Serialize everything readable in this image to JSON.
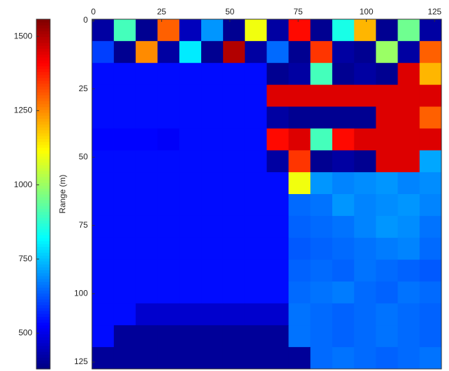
{
  "chart_data": {
    "type": "heatmap",
    "colormap": "jet",
    "colorbar_label": "Range (m)",
    "xlim": [
      -0.5,
      127.5
    ],
    "ylim": [
      127.5,
      -0.5
    ],
    "xticks": [
      0,
      25,
      50,
      75,
      100,
      125
    ],
    "yticks": [
      0,
      25,
      50,
      75,
      100,
      125
    ],
    "clim": [
      380,
      1558
    ],
    "cticks": [
      500,
      750,
      1000,
      1250,
      1500
    ],
    "values": [
      [
        420,
        900,
        400,
        1300,
        450,
        700,
        400,
        1100,
        420,
        1400,
        400,
        850,
        1200,
        400,
        950,
        420
      ],
      [
        600,
        400,
        1250,
        420,
        800,
        400,
        1500,
        420,
        650,
        400,
        1350,
        420,
        400,
        1000,
        420,
        1300
      ],
      [
        540,
        540,
        540,
        540,
        540,
        540,
        540,
        540,
        400,
        420,
        900,
        400,
        420,
        400,
        1450,
        1200
      ],
      [
        540,
        540,
        540,
        540,
        540,
        540,
        540,
        540,
        1450,
        1450,
        1450,
        1450,
        1450,
        1450,
        1450,
        1450
      ],
      [
        540,
        540,
        540,
        540,
        540,
        540,
        540,
        540,
        420,
        400,
        400,
        400,
        400,
        1450,
        1450,
        1300
      ],
      [
        530,
        530,
        530,
        520,
        540,
        540,
        540,
        540,
        1400,
        1450,
        900,
        1400,
        1450,
        1450,
        1450,
        1450
      ],
      [
        540,
        540,
        540,
        540,
        540,
        540,
        540,
        540,
        420,
        1350,
        400,
        420,
        400,
        1450,
        1450,
        720
      ],
      [
        540,
        540,
        540,
        540,
        540,
        540,
        540,
        540,
        540,
        1100,
        700,
        680,
        690,
        700,
        680,
        690
      ],
      [
        540,
        540,
        540,
        540,
        540,
        540,
        540,
        540,
        540,
        650,
        660,
        700,
        680,
        690,
        700,
        680
      ],
      [
        540,
        540,
        540,
        540,
        540,
        540,
        540,
        540,
        540,
        640,
        650,
        660,
        680,
        700,
        690,
        660
      ],
      [
        540,
        540,
        540,
        540,
        540,
        540,
        540,
        540,
        540,
        630,
        640,
        650,
        660,
        670,
        680,
        650
      ],
      [
        540,
        540,
        540,
        540,
        540,
        540,
        540,
        540,
        540,
        640,
        650,
        640,
        660,
        650,
        640,
        630
      ],
      [
        540,
        540,
        540,
        540,
        540,
        540,
        540,
        540,
        540,
        650,
        660,
        670,
        650,
        640,
        660,
        650
      ],
      [
        540,
        540,
        470,
        470,
        470,
        470,
        470,
        470,
        470,
        660,
        650,
        640,
        650,
        660,
        650,
        640
      ],
      [
        540,
        410,
        410,
        410,
        410,
        410,
        410,
        410,
        410,
        660,
        650,
        640,
        650,
        660,
        650,
        640
      ],
      [
        410,
        410,
        410,
        410,
        410,
        410,
        410,
        410,
        410,
        410,
        650,
        660,
        650,
        640,
        650,
        660
      ]
    ]
  }
}
